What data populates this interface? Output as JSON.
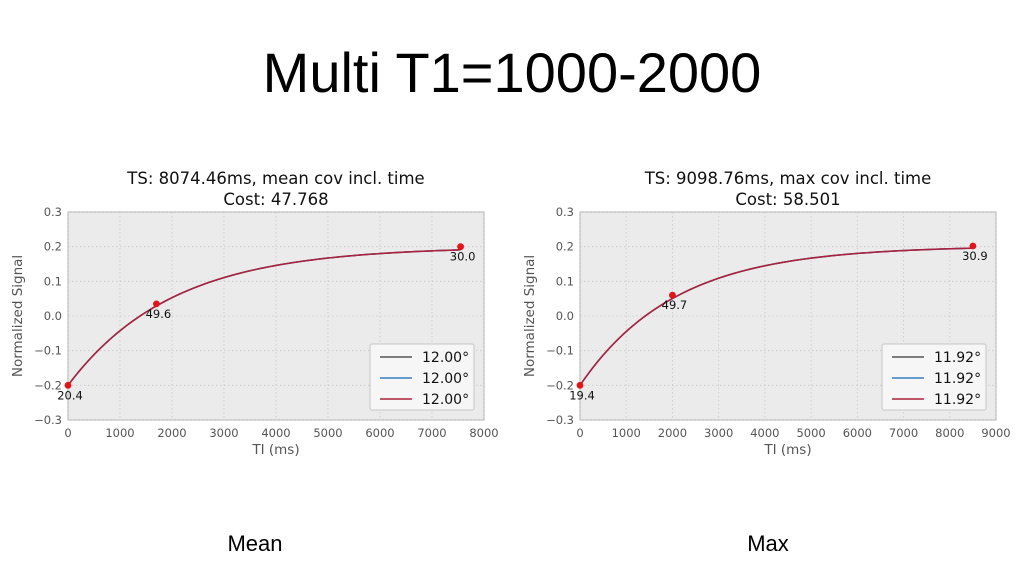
{
  "slide": {
    "title": "Multi T1=1000-2000",
    "captions": [
      "Mean",
      "Max"
    ]
  },
  "chart_data": [
    {
      "type": "line",
      "title": "TS: 8074.46ms, mean cov incl. time",
      "subtitle": "Cost: 47.768",
      "xlabel": "TI (ms)",
      "ylabel": "Normalized Signal",
      "xlim": [
        0,
        8000
      ],
      "ylim": [
        -0.3,
        0.3
      ],
      "x_ticks": [
        0,
        1000,
        2000,
        3000,
        4000,
        5000,
        6000,
        7000,
        8000
      ],
      "y_ticks": [
        -0.3,
        -0.2,
        -0.1,
        0.0,
        0.1,
        0.2,
        0.3
      ],
      "y_tick_labels": [
        "−0.3",
        "−0.2",
        "−0.1",
        "0.0",
        "0.1",
        "0.2",
        "0.3"
      ],
      "grid": true,
      "legend_position": "lower-right",
      "curve": {
        "asymptote": 0.2,
        "start": -0.2,
        "tau": 2000,
        "x_end": 7550
      },
      "series": [
        {
          "name": "12.00°",
          "color": "#555555"
        },
        {
          "name": "12.00°",
          "color": "#3a7fc1"
        },
        {
          "name": "12.00°",
          "color": "#a8223f"
        }
      ],
      "points": [
        {
          "x": 0,
          "y": -0.2,
          "label": "20.4"
        },
        {
          "x": 1700,
          "y": 0.035,
          "label": "49.6"
        },
        {
          "x": 7550,
          "y": 0.2,
          "label": "30.0"
        }
      ]
    },
    {
      "type": "line",
      "title": "TS: 9098.76ms, max cov incl. time",
      "subtitle": "Cost: 58.501",
      "xlabel": "TI (ms)",
      "ylabel": "Normalized Signal",
      "xlim": [
        0,
        9000
      ],
      "ylim": [
        -0.3,
        0.3
      ],
      "x_ticks": [
        0,
        1000,
        2000,
        3000,
        4000,
        5000,
        6000,
        7000,
        8000,
        9000
      ],
      "y_ticks": [
        -0.3,
        -0.2,
        -0.1,
        0.0,
        0.1,
        0.2,
        0.3
      ],
      "y_tick_labels": [
        "−0.3",
        "−0.2",
        "−0.1",
        "0.0",
        "0.1",
        "0.2",
        "0.3"
      ],
      "grid": true,
      "legend_position": "lower-right",
      "curve": {
        "asymptote": 0.202,
        "start": -0.2,
        "tau": 2050,
        "x_end": 8500
      },
      "series": [
        {
          "name": "11.92°",
          "color": "#555555"
        },
        {
          "name": "11.92°",
          "color": "#3a7fc1"
        },
        {
          "name": "11.92°",
          "color": "#a8223f"
        }
      ],
      "points": [
        {
          "x": 0,
          "y": -0.2,
          "label": "19.4"
        },
        {
          "x": 2000,
          "y": 0.06,
          "label": "49.7"
        },
        {
          "x": 8500,
          "y": 0.202,
          "label": "30.9"
        }
      ]
    }
  ]
}
